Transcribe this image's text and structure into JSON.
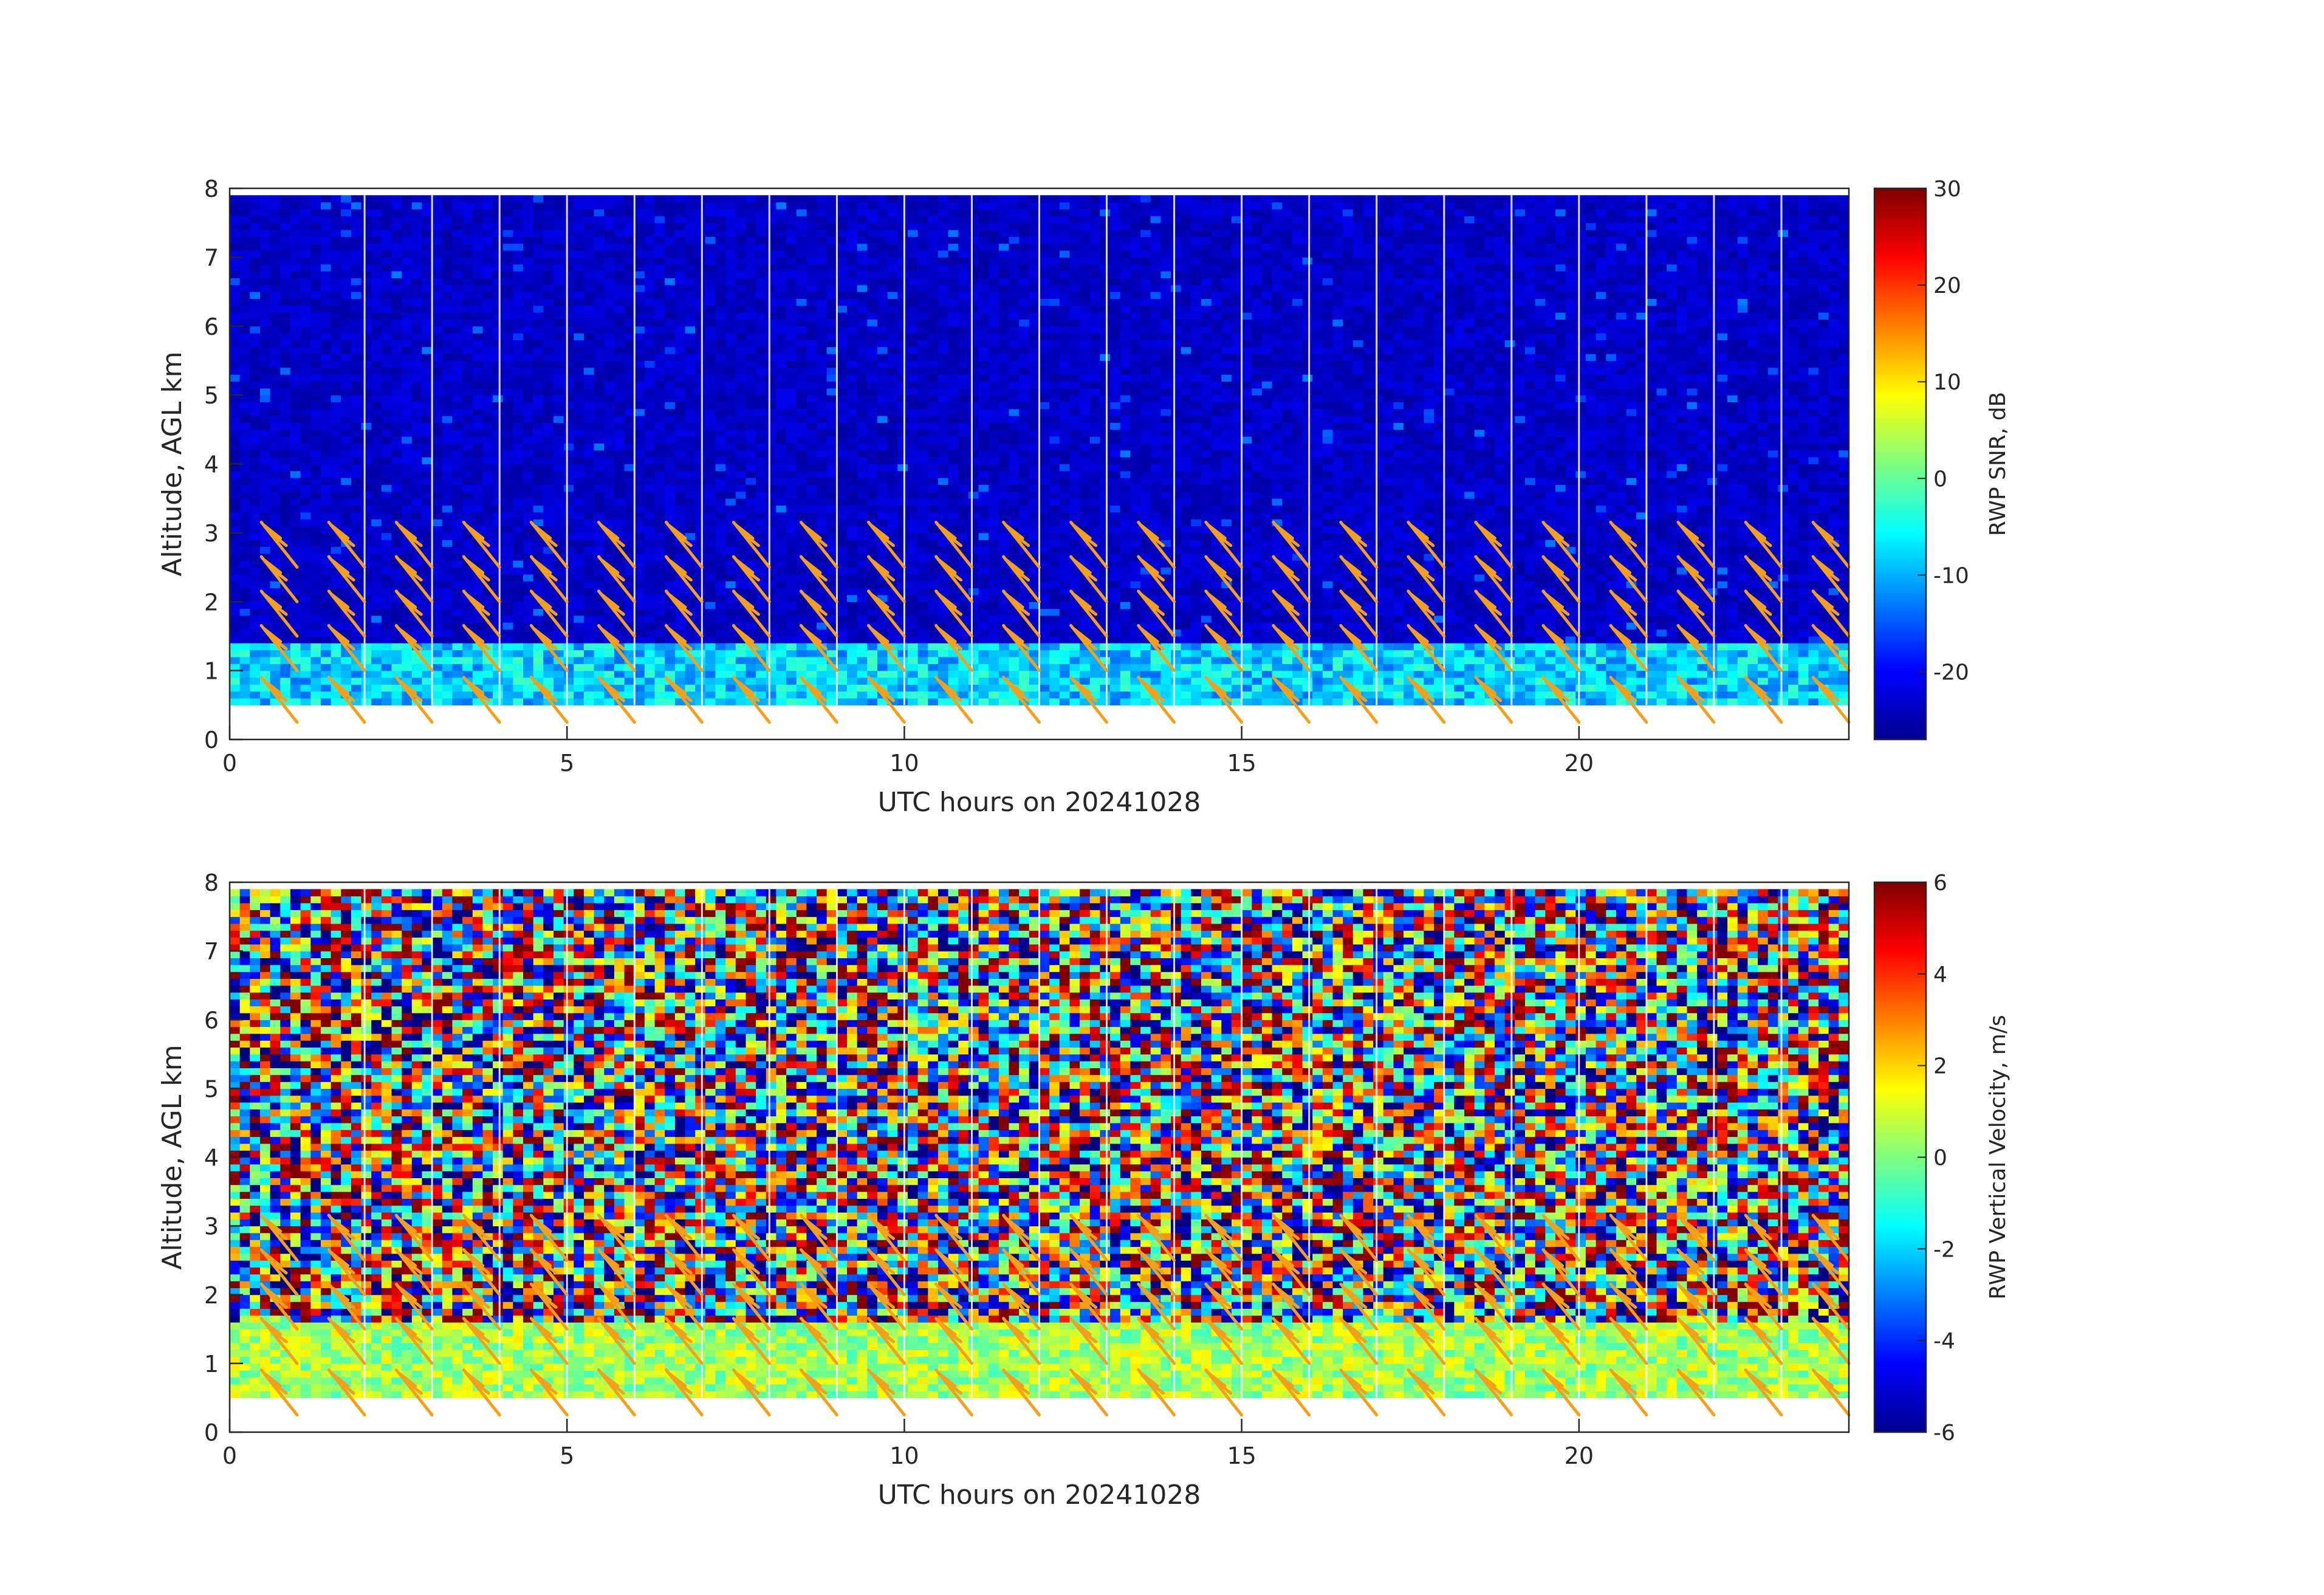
{
  "chart_data": [
    {
      "type": "heatmap",
      "xlabel": "UTC hours on 20241028",
      "ylabel": "Altitude, AGL km",
      "xlim": [
        0,
        24
      ],
      "ylim": [
        0,
        8
      ],
      "x_ticks": [
        "0",
        "5",
        "10",
        "15",
        "20"
      ],
      "y_ticks": [
        "0",
        "1",
        "2",
        "3",
        "4",
        "5",
        "6",
        "7",
        "8"
      ],
      "colorbar": {
        "label": "RWP SNR, dB",
        "range": [
          -27,
          30
        ],
        "ticks": [
          "30",
          "20",
          "10",
          "0",
          "-10",
          "-20"
        ],
        "colormap": "jet"
      },
      "data_range_km": [
        0.5,
        7.9
      ],
      "boundary_layer_top_km": 1.4,
      "boundary_layer_value": -8,
      "background_value": -23,
      "overlay": "wind barbs",
      "grid": false
    },
    {
      "type": "heatmap",
      "xlabel": "UTC hours on 20241028",
      "ylabel": "Altitude, AGL km",
      "xlim": [
        0,
        24
      ],
      "ylim": [
        0,
        8
      ],
      "x_ticks": [
        "0",
        "5",
        "10",
        "15",
        "20"
      ],
      "y_ticks": [
        "0",
        "1",
        "2",
        "3",
        "4",
        "5",
        "6",
        "7",
        "8"
      ],
      "colorbar": {
        "label": "RWP Vertical Velocity, m/s",
        "range": [
          -6,
          6
        ],
        "ticks": [
          "6",
          "4",
          "2",
          "0",
          "-2",
          "-4",
          "-6"
        ],
        "colormap": "jet"
      },
      "data_range_km": [
        0.5,
        7.9
      ],
      "boundary_layer_top_km": 1.6,
      "boundary_layer_value": 0.5,
      "above_layer": "noise",
      "overlay": "wind barbs",
      "grid": false
    }
  ],
  "colors": {
    "barb": "#f5a01a",
    "axis": "#262626",
    "gap_lines": "#ffffff"
  },
  "barbs": {
    "hours_step": 1,
    "first_hour": 1,
    "altitudes_km": [
      0.25,
      1.0,
      1.5,
      2.0,
      2.5
    ]
  }
}
